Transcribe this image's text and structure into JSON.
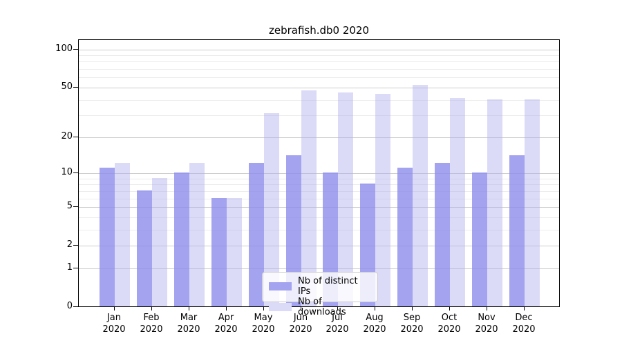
{
  "figure": {
    "background": "#ffffff",
    "text_color": "#000000",
    "gridline_major_color": "#cccccc",
    "gridline_minor_color": "#ececec"
  },
  "chart_data": {
    "type": "bar",
    "title": "zebrafish.db0 2020",
    "categories": [
      "Jan",
      "Feb",
      "Mar",
      "Apr",
      "May",
      "Jun",
      "Jul",
      "Aug",
      "Sep",
      "Oct",
      "Nov",
      "Dec"
    ],
    "x_year_label": "2020",
    "series": [
      {
        "name": "Nb of distinct IPs",
        "color": "#a3a3f0",
        "values": [
          11,
          7,
          10,
          6,
          12,
          14,
          10,
          8,
          11,
          12,
          10,
          14
        ]
      },
      {
        "name": "Nb of downloads",
        "color": "#dbdbf8",
        "values": [
          12,
          9,
          12,
          6,
          31,
          47,
          45,
          44,
          52,
          41,
          40,
          40
        ]
      }
    ],
    "xlabel": "",
    "ylabel": "",
    "yscale": "log1p",
    "ylim": [
      0,
      117
    ],
    "yticks": [
      0,
      1,
      2,
      5,
      10,
      20,
      50,
      100
    ],
    "yticks_minor": [
      3,
      4,
      6,
      7,
      8,
      9,
      30,
      40,
      60,
      70,
      80,
      90
    ],
    "grid": true,
    "legend_position": "lower center"
  }
}
